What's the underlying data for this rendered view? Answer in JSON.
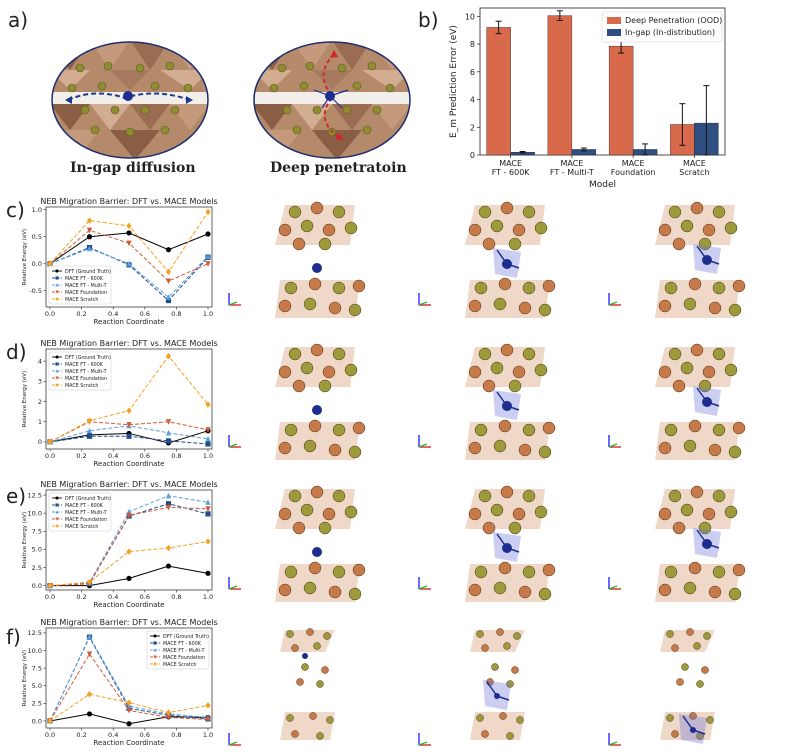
{
  "panel_a": {
    "label": "a)",
    "left_caption": "In-gap diffusion",
    "right_caption": "Deep penetratoin"
  },
  "panel_b": {
    "label": "b)"
  },
  "panels": [
    {
      "label": "c)"
    },
    {
      "label": "d)"
    },
    {
      "label": "e)"
    },
    {
      "label": "f)"
    }
  ],
  "colors": {
    "ood": "#d9694b",
    "in_dist": "#2f4f82",
    "dft": "#000000",
    "ft600k": "#1f4e8c",
    "multit": "#5aa0e0",
    "foundation": "#d05a35",
    "scratch": "#f5a020",
    "copper_atom": "#c67a4a",
    "gold_atom": "#9c9a3a",
    "blue_atom": "#1c2d8f"
  },
  "chart_data": [
    {
      "type": "bar",
      "title": "",
      "categories": [
        "MACE\nFT - 600K",
        "MACE\nFT - Multi-T",
        "MACE\nFoundation",
        "MACE\nScratch"
      ],
      "category_lines": [
        [
          "MACE",
          "FT - 600K"
        ],
        [
          "MACE",
          "FT - Multi-T"
        ],
        [
          "MACE",
          "Foundation"
        ],
        [
          "MACE",
          "Scratch"
        ]
      ],
      "xlabel": "Model",
      "ylabel": "E_m Prediction Error (eV)",
      "ylim": [
        0,
        10.6
      ],
      "yticks": [
        0,
        2,
        4,
        6,
        8,
        10
      ],
      "legend_position": "top-right",
      "series": [
        {
          "name": "Deep Penetration (OOD)",
          "values": [
            9.2,
            10.05,
            7.85,
            2.2
          ],
          "errors": [
            0.45,
            0.35,
            0.5,
            1.5
          ]
        },
        {
          "name": "In-gap (In-distribution)",
          "values": [
            0.2,
            0.4,
            0.4,
            2.3
          ],
          "errors": [
            0.05,
            0.1,
            0.4,
            2.7
          ]
        }
      ]
    },
    {
      "type": "line",
      "title": "NEB Migration Barrier: DFT vs. MACE Models",
      "xlabel": "Reaction Coordinate",
      "ylabel": "Relative Energy (eV)",
      "x": [
        0.0,
        0.25,
        0.5,
        0.75,
        1.0
      ],
      "xticks": [
        0.0,
        0.2,
        0.4,
        0.6,
        0.8,
        1.0
      ],
      "xtick_labels": [
        "0.0",
        "0.2",
        "0.4",
        "0.6",
        "0.8",
        "1.0"
      ],
      "ylim": [
        -0.8,
        1.05
      ],
      "yticks": [
        -0.5,
        0.0,
        0.5,
        1.0
      ],
      "ytick_labels": [
        "-0.5",
        "0.0",
        "0.5",
        "1.0"
      ],
      "legend_position": "lower-left",
      "series": [
        {
          "name": "DFT (Ground Truth)",
          "values": [
            0.0,
            0.5,
            0.57,
            0.26,
            0.55
          ]
        },
        {
          "name": "MACE FT - 600K",
          "values": [
            0.0,
            0.3,
            -0.02,
            -0.68,
            0.12
          ]
        },
        {
          "name": "MACE FT - Multi-T",
          "values": [
            0.0,
            0.28,
            0.0,
            -0.62,
            0.14
          ]
        },
        {
          "name": "MACE Foundation",
          "values": [
            0.0,
            0.62,
            0.38,
            -0.32,
            0.0
          ]
        },
        {
          "name": "MACE Scratch",
          "values": [
            0.0,
            0.8,
            0.7,
            -0.15,
            0.96
          ]
        }
      ]
    },
    {
      "type": "line",
      "title": "NEB Migration Barrier: DFT vs. MACE Models",
      "xlabel": "Reaction Coordinate",
      "ylabel": "Relative Energy (eV)",
      "x": [
        0.0,
        0.25,
        0.5,
        0.75,
        1.0
      ],
      "xticks": [
        0.0,
        0.2,
        0.4,
        0.6,
        0.8,
        1.0
      ],
      "xtick_labels": [
        "0.0",
        "0.2",
        "0.4",
        "0.6",
        "0.8",
        "1.0"
      ],
      "ylim": [
        -0.35,
        4.6
      ],
      "yticks": [
        0,
        1,
        2,
        3,
        4
      ],
      "ytick_labels": [
        "0",
        "1",
        "2",
        "3",
        "4"
      ],
      "legend_position": "top-left",
      "series": [
        {
          "name": "DFT (Ground Truth)",
          "values": [
            0.0,
            0.35,
            0.42,
            -0.05,
            0.55
          ]
        },
        {
          "name": "MACE FT - 600K",
          "values": [
            0.0,
            0.28,
            0.28,
            0.05,
            -0.1
          ]
        },
        {
          "name": "MACE FT - Multi-T",
          "values": [
            0.0,
            0.55,
            0.8,
            0.45,
            0.15
          ]
        },
        {
          "name": "MACE Foundation",
          "values": [
            0.0,
            1.0,
            0.85,
            1.0,
            0.6
          ]
        },
        {
          "name": "MACE Scratch",
          "values": [
            0.0,
            1.05,
            1.55,
            4.25,
            1.85
          ]
        }
      ]
    },
    {
      "type": "line",
      "title": "NEB Migration Barrier: DFT vs. MACE Models",
      "xlabel": "Reaction Coordinate",
      "ylabel": "Relative Energy (eV)",
      "x": [
        0.0,
        0.25,
        0.5,
        0.75,
        1.0
      ],
      "xticks": [
        0.0,
        0.2,
        0.4,
        0.6,
        0.8,
        1.0
      ],
      "xtick_labels": [
        "0.0",
        "0.2",
        "0.4",
        "0.6",
        "0.8",
        "1.0"
      ],
      "ylim": [
        -0.6,
        13.2
      ],
      "yticks": [
        0.0,
        2.5,
        5.0,
        7.5,
        10.0,
        12.5
      ],
      "ytick_labels": [
        "0.0",
        "2.5",
        "5.0",
        "7.5",
        "10.0",
        "12.5"
      ],
      "legend_position": "top-left",
      "series": [
        {
          "name": "DFT (Ground Truth)",
          "values": [
            0.0,
            0.0,
            1.0,
            2.7,
            1.7
          ]
        },
        {
          "name": "MACE FT - 600K",
          "values": [
            0.0,
            0.3,
            9.6,
            11.3,
            9.9
          ]
        },
        {
          "name": "MACE FT - Multi-T",
          "values": [
            0.0,
            0.4,
            10.2,
            12.4,
            11.5
          ]
        },
        {
          "name": "MACE Foundation",
          "values": [
            0.0,
            0.25,
            9.7,
            10.8,
            10.6
          ]
        },
        {
          "name": "MACE Scratch",
          "values": [
            0.0,
            0.5,
            4.7,
            5.2,
            6.1
          ]
        }
      ]
    },
    {
      "type": "line",
      "title": "NEB Migration Barrier: DFT vs. MACE Models",
      "xlabel": "Reaction Coordinate",
      "ylabel": "Relative Energy (eV)",
      "x": [
        0.0,
        0.25,
        0.5,
        0.75,
        1.0
      ],
      "xticks": [
        0.0,
        0.2,
        0.4,
        0.6,
        0.8,
        1.0
      ],
      "xtick_labels": [
        "0.0",
        "0.2",
        "0.4",
        "0.6",
        "0.8",
        "1.0"
      ],
      "ylim": [
        -1.0,
        13.2
      ],
      "yticks": [
        0.0,
        2.5,
        5.0,
        7.5,
        10.0,
        12.5
      ],
      "ytick_labels": [
        "0.0",
        "2.5",
        "5.0",
        "7.5",
        "10.0",
        "12.5"
      ],
      "legend_position": "top-right",
      "series": [
        {
          "name": "DFT (Ground Truth)",
          "values": [
            0.0,
            1.0,
            -0.4,
            0.6,
            0.5
          ]
        },
        {
          "name": "MACE FT - 600K",
          "values": [
            0.0,
            11.9,
            1.8,
            0.8,
            0.3
          ]
        },
        {
          "name": "MACE FT - Multi-T",
          "values": [
            0.0,
            12.0,
            2.1,
            1.0,
            0.5
          ]
        },
        {
          "name": "MACE Foundation",
          "values": [
            0.0,
            9.5,
            1.5,
            0.5,
            0.2
          ]
        },
        {
          "name": "MACE Scratch",
          "values": [
            0.0,
            3.8,
            2.6,
            1.2,
            2.2
          ]
        }
      ]
    }
  ]
}
